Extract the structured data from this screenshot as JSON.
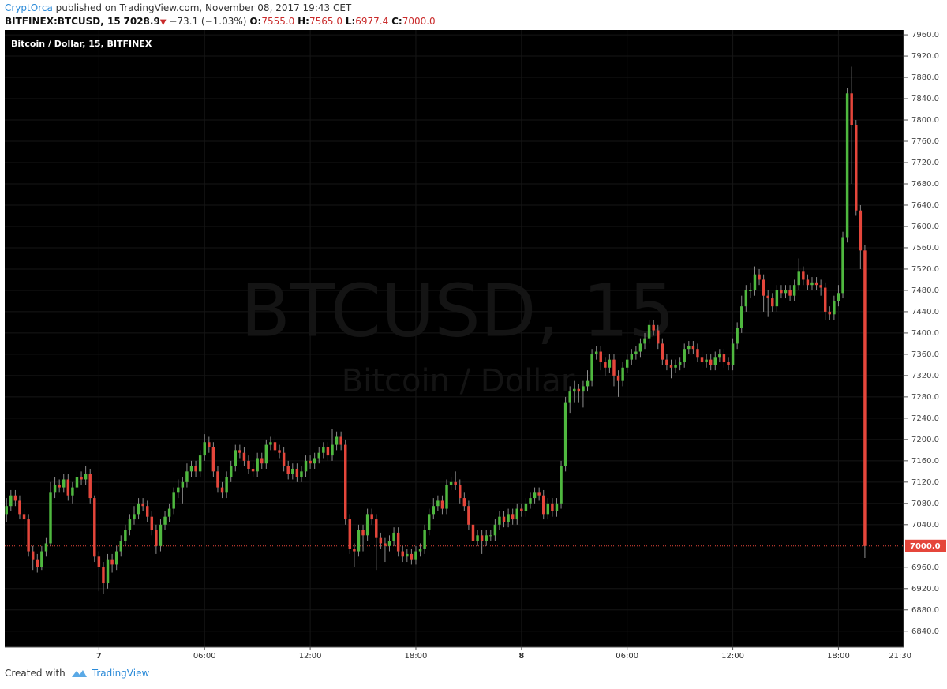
{
  "header": {
    "author": "CryptOrca",
    "published": "published on TradingView.com, November 08, 2017 19:43 CET",
    "symbol": "BITFINEX:BTCUSD, 15",
    "last": "7028.9",
    "change": "−73.1 (−1.03%)",
    "ohlc": [
      {
        "label": "O:",
        "value": "7555.0"
      },
      {
        "label": "H:",
        "value": "7565.0"
      },
      {
        "label": "L:",
        "value": "6977.4"
      },
      {
        "label": "C:",
        "value": "7000.0"
      }
    ]
  },
  "footer": {
    "created_with": "Created with",
    "brand": "TradingView"
  },
  "chart_data": {
    "type": "candlestick",
    "title": "Bitcoin / Dollar, 15, BITFINEX",
    "watermark": "BTCUSD, 15",
    "watermark_subtitle": "Bitcoin / Dollar",
    "up_color": "#4fb83f",
    "down_color": "#e5463b",
    "wick_color": "#8c8c8c",
    "background": "#000000",
    "grid": true,
    "grid_color": "#161616",
    "xlim": [
      -0.4,
      203.8
    ],
    "xticks": [
      {
        "value": 21,
        "label": "7"
      },
      {
        "value": 45,
        "label": "06:00"
      },
      {
        "value": 69,
        "label": "12:00"
      },
      {
        "value": 93,
        "label": "18:00"
      },
      {
        "value": 117,
        "label": "8"
      },
      {
        "value": 141,
        "label": "06:00"
      },
      {
        "value": 165,
        "label": "12:00"
      },
      {
        "value": 189,
        "label": "18:00"
      },
      {
        "value": 203,
        "label": "21:30"
      }
    ],
    "ylim": [
      6810,
      7969
    ],
    "yticks": [
      {
        "value": 6840,
        "label": "6840.0"
      },
      {
        "value": 6880,
        "label": "6880.0"
      },
      {
        "value": 6920,
        "label": "6920.0"
      },
      {
        "value": 6960,
        "label": "6960.0"
      },
      {
        "value": 7040,
        "label": "7040.0"
      },
      {
        "value": 7080,
        "label": "7080.0"
      },
      {
        "value": 7120,
        "label": "7120.0"
      },
      {
        "value": 7160,
        "label": "7160.0"
      },
      {
        "value": 7200,
        "label": "7200.0"
      },
      {
        "value": 7240,
        "label": "7240.0"
      },
      {
        "value": 7280,
        "label": "7280.0"
      },
      {
        "value": 7320,
        "label": "7320.0"
      },
      {
        "value": 7360,
        "label": "7360.0"
      },
      {
        "value": 7400,
        "label": "7400.0"
      },
      {
        "value": 7440,
        "label": "7440.0"
      },
      {
        "value": 7480,
        "label": "7480.0"
      },
      {
        "value": 7520,
        "label": "7520.0"
      },
      {
        "value": 7560,
        "label": "7560.0"
      },
      {
        "value": 7600,
        "label": "7600.0"
      },
      {
        "value": 7640,
        "label": "7640.0"
      },
      {
        "value": 7680,
        "label": "7680.0"
      },
      {
        "value": 7720,
        "label": "7720.0"
      },
      {
        "value": 7760,
        "label": "7760.0"
      },
      {
        "value": 7800,
        "label": "7800.0"
      },
      {
        "value": 7840,
        "label": "7840.0"
      },
      {
        "value": 7880,
        "label": "7880.0"
      },
      {
        "value": 7920,
        "label": "7920.0"
      },
      {
        "value": 7960,
        "label": "7960.0"
      }
    ],
    "last_price": {
      "value": 7000,
      "label": "7000.0"
    },
    "open": [
      7060,
      7075,
      7095,
      7085,
      7060,
      7050,
      6990,
      6975,
      6960,
      6990,
      7005,
      7100,
      7115,
      7110,
      7125,
      7095,
      7110,
      7130,
      7125,
      7135,
      7090,
      6980,
      6960,
      6930,
      6975,
      6965,
      6990,
      7010,
      7030,
      7050,
      7060,
      7080,
      7075,
      7055,
      7030,
      7000,
      7040,
      7055,
      7070,
      7100,
      7110,
      7120,
      7140,
      7150,
      7140,
      7170,
      7195,
      7185,
      7140,
      7110,
      7100,
      7130,
      7150,
      7180,
      7175,
      7160,
      7145,
      7140,
      7165,
      7155,
      7190,
      7195,
      7180,
      7175,
      7150,
      7135,
      7145,
      7130,
      7140,
      7160,
      7155,
      7165,
      7175,
      7185,
      7170,
      7190,
      7205,
      7190,
      7050,
      6995,
      6990,
      7030,
      7020,
      7060,
      7050,
      7015,
      7005,
      7000,
      7010,
      7025,
      6990,
      6980,
      6985,
      6975,
      6990,
      6995,
      7030,
      7060,
      7075,
      7085,
      7070,
      7115,
      7120,
      7115,
      7090,
      7075,
      7040,
      7010,
      7020,
      7010,
      7020,
      7020,
      7040,
      7055,
      7045,
      7060,
      7050,
      7070,
      7065,
      7080,
      7090,
      7100,
      7095,
      7060,
      7080,
      7065,
      7080,
      7150,
      7270,
      7290,
      7295,
      7290,
      7300,
      7310,
      7360,
      7365,
      7345,
      7335,
      7350,
      7320,
      7310,
      7335,
      7350,
      7360,
      7365,
      7380,
      7390,
      7415,
      7405,
      7380,
      7350,
      7340,
      7335,
      7340,
      7345,
      7370,
      7375,
      7370,
      7355,
      7345,
      7350,
      7340,
      7355,
      7360,
      7345,
      7340,
      7380,
      7410,
      7450,
      7480,
      7480,
      7510,
      7500,
      7470,
      7465,
      7450,
      7480,
      7475,
      7480,
      7470,
      7490,
      7515,
      7500,
      7490,
      7495,
      7490,
      7485,
      7440,
      7435,
      7460,
      7475,
      7580,
      7850,
      7790,
      7630,
      7555
    ],
    "high": [
      7090,
      7105,
      7105,
      7095,
      7070,
      7060,
      7000,
      6985,
      7000,
      7015,
      7120,
      7130,
      7125,
      7135,
      7135,
      7120,
      7140,
      7140,
      7150,
      7145,
      7095,
      6990,
      6970,
      6985,
      6985,
      7000,
      7020,
      7040,
      7060,
      7075,
      7090,
      7090,
      7085,
      7065,
      7040,
      7050,
      7065,
      7080,
      7110,
      7125,
      7130,
      7155,
      7160,
      7160,
      7180,
      7210,
      7205,
      7195,
      7150,
      7120,
      7140,
      7160,
      7190,
      7190,
      7185,
      7170,
      7155,
      7175,
      7175,
      7200,
      7205,
      7205,
      7190,
      7185,
      7160,
      7155,
      7155,
      7150,
      7170,
      7170,
      7175,
      7185,
      7195,
      7195,
      7220,
      7215,
      7215,
      7200,
      7060,
      7005,
      7040,
      7040,
      7070,
      7070,
      7060,
      7025,
      7015,
      7020,
      7035,
      7035,
      7000,
      6995,
      6995,
      7000,
      7005,
      7040,
      7070,
      7090,
      7095,
      7095,
      7125,
      7130,
      7140,
      7125,
      7100,
      7085,
      7050,
      7030,
      7030,
      7030,
      7030,
      7050,
      7065,
      7065,
      7070,
      7070,
      7080,
      7080,
      7090,
      7100,
      7110,
      7110,
      7105,
      7090,
      7090,
      7090,
      7160,
      7280,
      7300,
      7310,
      7305,
      7310,
      7330,
      7370,
      7375,
      7375,
      7355,
      7360,
      7360,
      7330,
      7345,
      7360,
      7370,
      7375,
      7390,
      7400,
      7425,
      7425,
      7415,
      7390,
      7360,
      7350,
      7350,
      7355,
      7380,
      7385,
      7385,
      7380,
      7365,
      7360,
      7360,
      7365,
      7370,
      7370,
      7355,
      7390,
      7420,
      7470,
      7490,
      7495,
      7525,
      7520,
      7510,
      7480,
      7475,
      7490,
      7490,
      7490,
      7490,
      7500,
      7540,
      7525,
      7510,
      7505,
      7505,
      7500,
      7495,
      7450,
      7470,
      7490,
      7590,
      7860,
      7900,
      7800,
      7640,
      7565
    ],
    "low": [
      7045,
      7065,
      7075,
      7050,
      7000,
      6980,
      6955,
      6950,
      6955,
      6980,
      7000,
      7090,
      7100,
      7100,
      7085,
      7080,
      7100,
      7115,
      7115,
      7080,
      6970,
      6915,
      6910,
      6920,
      6950,
      6955,
      6980,
      7000,
      7020,
      7040,
      7050,
      7065,
      7045,
      7020,
      6985,
      6990,
      7030,
      7045,
      7060,
      7090,
      7080,
      7110,
      7130,
      7130,
      7130,
      7160,
      7175,
      7130,
      7100,
      7090,
      7090,
      7120,
      7140,
      7165,
      7150,
      7135,
      7130,
      7130,
      7145,
      7145,
      7180,
      7170,
      7165,
      7140,
      7125,
      7125,
      7120,
      7120,
      7130,
      7145,
      7145,
      7155,
      7165,
      7160,
      7160,
      7180,
      7180,
      7040,
      6985,
      6960,
      6980,
      6990,
      7010,
      7040,
      6955,
      6995,
      6970,
      6990,
      7000,
      6980,
      6970,
      6970,
      6965,
      6965,
      6980,
      6985,
      7020,
      7050,
      7065,
      7060,
      7060,
      7105,
      7105,
      7080,
      7065,
      7030,
      7000,
      7000,
      6985,
      7000,
      7010,
      7010,
      7030,
      7035,
      7035,
      7040,
      7040,
      7055,
      7055,
      7070,
      7080,
      7085,
      7050,
      7050,
      7055,
      7055,
      7070,
      7140,
      7250,
      7270,
      7270,
      7260,
      7290,
      7300,
      7350,
      7330,
      7320,
      7325,
      7300,
      7280,
      7300,
      7325,
      7340,
      7350,
      7355,
      7370,
      7380,
      7395,
      7370,
      7340,
      7330,
      7315,
      7325,
      7330,
      7335,
      7360,
      7360,
      7345,
      7335,
      7335,
      7330,
      7330,
      7345,
      7335,
      7330,
      7330,
      7370,
      7400,
      7440,
      7465,
      7470,
      7490,
      7440,
      7430,
      7440,
      7440,
      7465,
      7465,
      7460,
      7460,
      7480,
      7490,
      7480,
      7480,
      7480,
      7470,
      7425,
      7425,
      7425,
      7450,
      7465,
      7570,
      7680,
      7620,
      7520,
      6977.4
    ],
    "close": [
      7075,
      7095,
      7085,
      7060,
      7050,
      6990,
      6975,
      6960,
      6990,
      7005,
      7100,
      7115,
      7110,
      7125,
      7095,
      7110,
      7130,
      7125,
      7135,
      7090,
      6980,
      6960,
      6930,
      6975,
      6965,
      6990,
      7010,
      7030,
      7050,
      7060,
      7080,
      7075,
      7055,
      7030,
      7000,
      7040,
      7055,
      7070,
      7100,
      7110,
      7120,
      7140,
      7150,
      7140,
      7170,
      7195,
      7185,
      7140,
      7110,
      7100,
      7130,
      7150,
      7180,
      7175,
      7160,
      7145,
      7140,
      7165,
      7155,
      7190,
      7195,
      7180,
      7175,
      7150,
      7135,
      7145,
      7130,
      7140,
      7160,
      7155,
      7165,
      7175,
      7185,
      7170,
      7190,
      7205,
      7190,
      7050,
      6995,
      6990,
      7030,
      7020,
      7060,
      7050,
      7015,
      7005,
      7000,
      7010,
      7025,
      6990,
      6980,
      6985,
      6975,
      6990,
      6995,
      7030,
      7060,
      7075,
      7085,
      7070,
      7115,
      7120,
      7115,
      7090,
      7075,
      7040,
      7010,
      7020,
      7010,
      7020,
      7020,
      7040,
      7055,
      7045,
      7060,
      7050,
      7070,
      7065,
      7080,
      7090,
      7100,
      7095,
      7060,
      7080,
      7065,
      7080,
      7150,
      7270,
      7290,
      7295,
      7290,
      7300,
      7310,
      7360,
      7365,
      7345,
      7335,
      7350,
      7320,
      7310,
      7335,
      7350,
      7360,
      7365,
      7380,
      7390,
      7415,
      7405,
      7380,
      7350,
      7340,
      7335,
      7340,
      7345,
      7370,
      7375,
      7370,
      7355,
      7345,
      7350,
      7340,
      7355,
      7360,
      7345,
      7340,
      7380,
      7410,
      7450,
      7480,
      7480,
      7510,
      7500,
      7470,
      7465,
      7450,
      7480,
      7475,
      7480,
      7470,
      7490,
      7515,
      7500,
      7490,
      7495,
      7490,
      7485,
      7440,
      7435,
      7460,
      7475,
      7580,
      7850,
      7790,
      7630,
      7555,
      7000
    ]
  }
}
